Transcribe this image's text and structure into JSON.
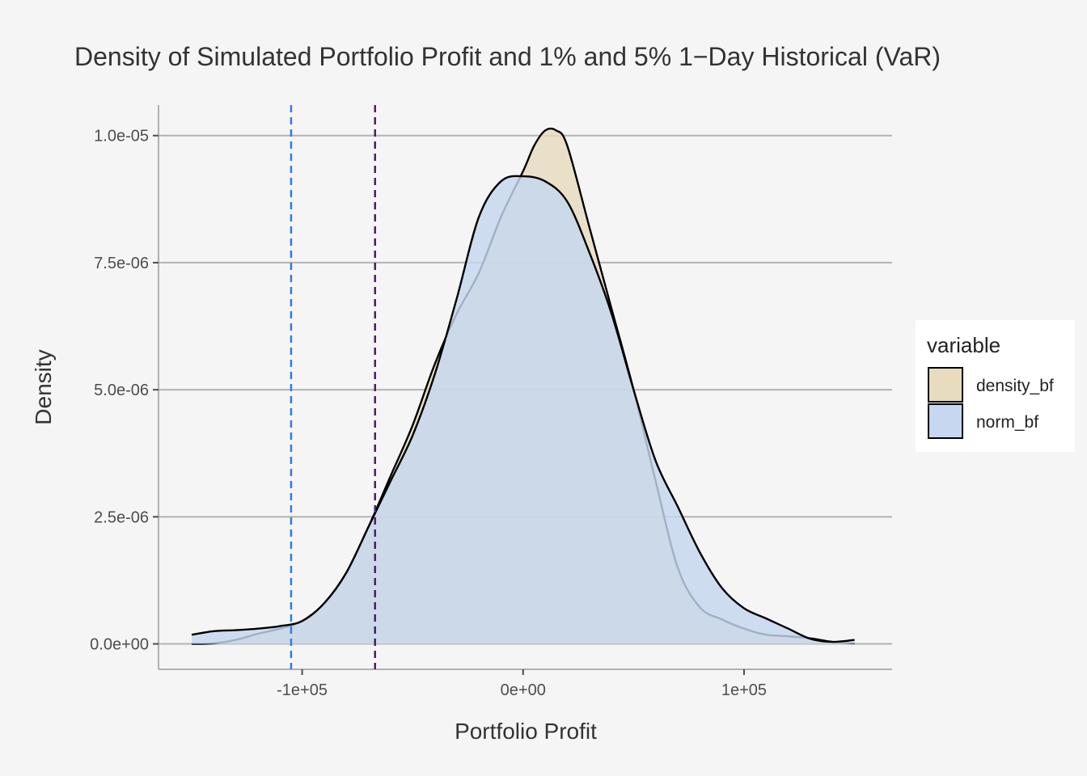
{
  "chart_data": {
    "type": "area",
    "title": "Density of Simulated Portfolio Profit and 1% and 5% 1−Day Historical (VaR)",
    "xlabel": "Portfolio Profit",
    "ylabel": "Density",
    "xlim": [
      -165000,
      167000
    ],
    "ylim": [
      -5e-07,
      1.06e-05
    ],
    "x_ticks": [
      -100000,
      0,
      100000
    ],
    "x_tick_labels": [
      "-1e+05",
      "0e+00",
      "1e+05"
    ],
    "y_ticks": [
      0,
      2.5e-06,
      5e-06,
      7.5e-06,
      1e-05
    ],
    "y_tick_labels": [
      "0.0e+00",
      "2.5e-06",
      "5.0e-06",
      "7.5e-06",
      "1.0e-05"
    ],
    "grid": "horizontal",
    "legend": {
      "title": "variable",
      "position": "right"
    },
    "series": [
      {
        "name": "density_bf",
        "fill": "#e8dcbf",
        "stroke": "#000000",
        "points": [
          [
            -150000,
            0.0
          ],
          [
            -140000,
            1e-08
          ],
          [
            -130000,
            8e-08
          ],
          [
            -120000,
            2e-07
          ],
          [
            -110000,
            3e-07
          ],
          [
            -100000,
            4.5e-07
          ],
          [
            -90000,
            8e-07
          ],
          [
            -80000,
            1.4e-06
          ],
          [
            -70000,
            2.3e-06
          ],
          [
            -60000,
            3.3e-06
          ],
          [
            -50000,
            4.3e-06
          ],
          [
            -40000,
            5.5e-06
          ],
          [
            -30000,
            6.5e-06
          ],
          [
            -20000,
            7.3e-06
          ],
          [
            -10000,
            8.4e-06
          ],
          [
            0,
            9.3e-06
          ],
          [
            5000,
            9.8e-06
          ],
          [
            10000,
            1.01e-05
          ],
          [
            15000,
            1.01e-05
          ],
          [
            20000,
            9.8e-06
          ],
          [
            30000,
            8.2e-06
          ],
          [
            40000,
            6.6e-06
          ],
          [
            50000,
            5e-06
          ],
          [
            60000,
            3.2e-06
          ],
          [
            70000,
            1.5e-06
          ],
          [
            80000,
            7.2e-07
          ],
          [
            90000,
            4.8e-07
          ],
          [
            100000,
            3e-07
          ],
          [
            110000,
            1.8e-07
          ],
          [
            120000,
            1.5e-07
          ],
          [
            130000,
            1.1e-07
          ],
          [
            140000,
            4e-08
          ],
          [
            150000,
            1e-08
          ]
        ]
      },
      {
        "name": "norm_bf",
        "fill": "#c6d7ef",
        "stroke": "#000000",
        "points": [
          [
            -150000,
            1.8e-07
          ],
          [
            -140000,
            2.5e-07
          ],
          [
            -130000,
            2.7e-07
          ],
          [
            -120000,
            3e-07
          ],
          [
            -110000,
            3.5e-07
          ],
          [
            -100000,
            4.5e-07
          ],
          [
            -90000,
            8e-07
          ],
          [
            -80000,
            1.4e-06
          ],
          [
            -70000,
            2.3e-06
          ],
          [
            -60000,
            3.2e-06
          ],
          [
            -50000,
            4.1e-06
          ],
          [
            -40000,
            5.3e-06
          ],
          [
            -30000,
            6.8e-06
          ],
          [
            -20000,
            8.4e-06
          ],
          [
            -10000,
            9.1e-06
          ],
          [
            0,
            9.2e-06
          ],
          [
            10000,
            9.1e-06
          ],
          [
            20000,
            8.7e-06
          ],
          [
            30000,
            7.7e-06
          ],
          [
            40000,
            6.5e-06
          ],
          [
            50000,
            5e-06
          ],
          [
            60000,
            3.6e-06
          ],
          [
            70000,
            2.7e-06
          ],
          [
            80000,
            1.8e-06
          ],
          [
            90000,
            1.1e-06
          ],
          [
            100000,
            7e-07
          ],
          [
            110000,
            5e-07
          ],
          [
            120000,
            3e-07
          ],
          [
            130000,
            1e-07
          ],
          [
            140000,
            4e-08
          ],
          [
            150000,
            8e-08
          ]
        ]
      }
    ],
    "vlines": [
      {
        "name": "var-1pct",
        "x": -105000,
        "color": "#2e7de6",
        "style": "dashed"
      },
      {
        "name": "var-5pct",
        "x": -67000,
        "color": "#4f1c6e",
        "style": "dashed"
      }
    ]
  }
}
